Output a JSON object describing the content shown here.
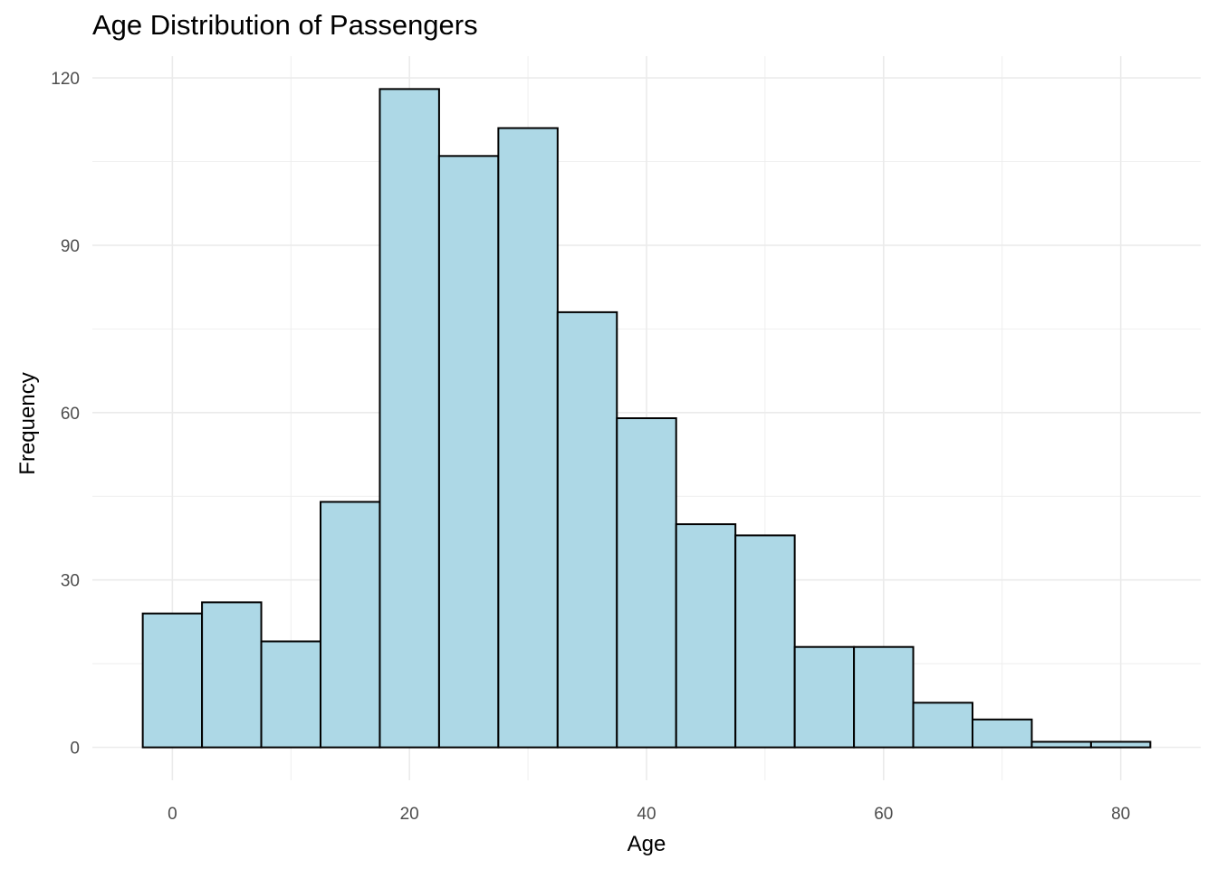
{
  "chart_data": {
    "type": "bar",
    "title": "Age Distribution of Passengers",
    "xlabel": "Age",
    "ylabel": "Frequency",
    "bin_width": 5,
    "bins": [
      {
        "x0": -2.5,
        "x1": 2.5,
        "count": 24
      },
      {
        "x0": 2.5,
        "x1": 7.5,
        "count": 26
      },
      {
        "x0": 7.5,
        "x1": 12.5,
        "count": 19
      },
      {
        "x0": 12.5,
        "x1": 17.5,
        "count": 44
      },
      {
        "x0": 17.5,
        "x1": 22.5,
        "count": 118
      },
      {
        "x0": 22.5,
        "x1": 27.5,
        "count": 106
      },
      {
        "x0": 27.5,
        "x1": 32.5,
        "count": 111
      },
      {
        "x0": 32.5,
        "x1": 37.5,
        "count": 78
      },
      {
        "x0": 37.5,
        "x1": 42.5,
        "count": 59
      },
      {
        "x0": 42.5,
        "x1": 47.5,
        "count": 40
      },
      {
        "x0": 47.5,
        "x1": 52.5,
        "count": 38
      },
      {
        "x0": 52.5,
        "x1": 57.5,
        "count": 18
      },
      {
        "x0": 57.5,
        "x1": 62.5,
        "count": 18
      },
      {
        "x0": 62.5,
        "x1": 67.5,
        "count": 8
      },
      {
        "x0": 67.5,
        "x1": 72.5,
        "count": 5
      },
      {
        "x0": 72.5,
        "x1": 77.5,
        "count": 1
      },
      {
        "x0": 77.5,
        "x1": 82.5,
        "count": 1
      }
    ],
    "xlim": [
      -6.75,
      86.75
    ],
    "ylim": [
      -5.9,
      123.9
    ],
    "x_ticks": [
      0,
      20,
      40,
      60,
      80
    ],
    "y_ticks": [
      0,
      30,
      60,
      90,
      120
    ],
    "grid": true,
    "colors": {
      "fill": "#add8e6",
      "stroke": "#000000",
      "grid": "#ebebeb"
    }
  }
}
